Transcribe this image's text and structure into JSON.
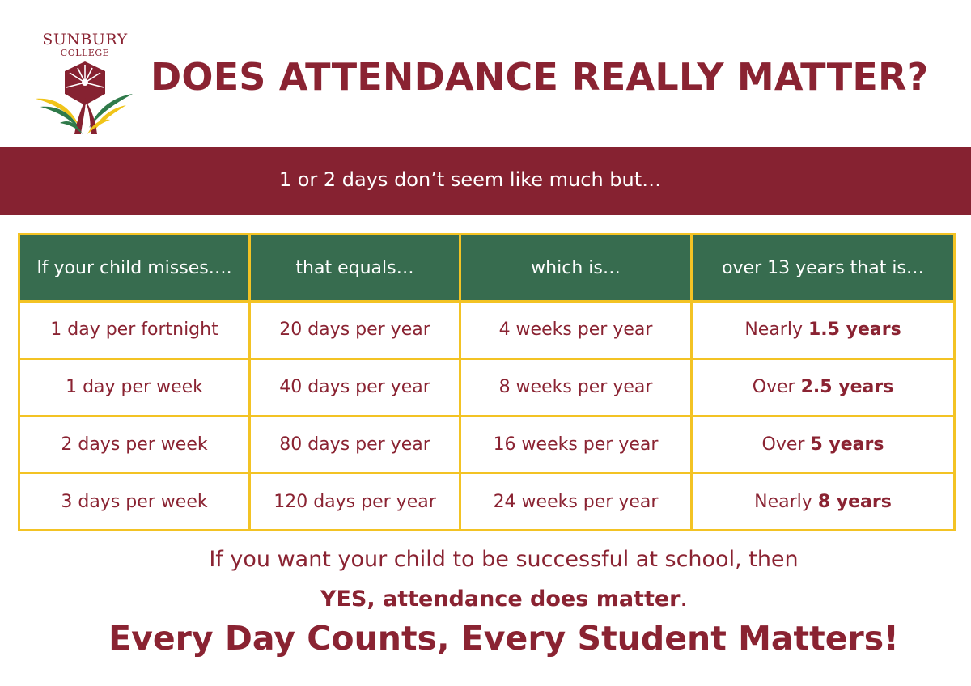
{
  "logo": {
    "line1": "SUNBURY",
    "line2": "COLLEGE",
    "icon": "sunbury-college-crest"
  },
  "title": "DOES ATTENDANCE REALLY MATTER?",
  "banner": "1 or 2 days don’t seem like much but…",
  "table": {
    "headers": [
      "If your child misses….",
      "that equals…",
      "which is…",
      "over 13 years that is…"
    ],
    "rows": [
      {
        "misses": "1 day per fortnight",
        "equals": "20 days per year",
        "which": "4 weeks per year",
        "over_prefix": "Nearly",
        "over_value": "1.5 years"
      },
      {
        "misses": "1 day per week",
        "equals": "40 days per year",
        "which": "8 weeks per year",
        "over_prefix": "Over",
        "over_value": "2.5 years"
      },
      {
        "misses": "2 days per week",
        "equals": "80 days per year",
        "which": "16 weeks per year",
        "over_prefix": "Over",
        "over_value": "5 years"
      },
      {
        "misses": "3 days per week",
        "equals": "120 days per year",
        "which": "24 weeks per year",
        "over_prefix": "Nearly",
        "over_value": "8 years"
      }
    ]
  },
  "footer": {
    "line1": "If you want your child to be successful at school, then",
    "line2_bold": "YES, attendance does matter",
    "line2_tail": ".",
    "line3": "Every Day Counts, Every Student Matters!"
  },
  "colors": {
    "maroon": "#862231",
    "green": "#376c4f",
    "gold": "#f3c324"
  }
}
